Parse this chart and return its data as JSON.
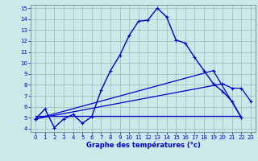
{
  "xlabel": "Graphe des températures (°c)",
  "xlim": [
    -0.5,
    23.5
  ],
  "ylim": [
    3.7,
    15.3
  ],
  "yticks": [
    4,
    5,
    6,
    7,
    8,
    9,
    10,
    11,
    12,
    13,
    14,
    15
  ],
  "xticks": [
    0,
    1,
    2,
    3,
    4,
    5,
    6,
    7,
    8,
    9,
    10,
    11,
    12,
    13,
    14,
    15,
    16,
    17,
    18,
    19,
    20,
    21,
    22,
    23
  ],
  "bg_color": "#cce8e8",
  "line_color": "#0000cc",
  "grid_color": "#99bbbb",
  "lines": [
    {
      "x": [
        0,
        1,
        2,
        3,
        4,
        5,
        6,
        7,
        8,
        9,
        10,
        11,
        12,
        13,
        14,
        15,
        16,
        17,
        18,
        19,
        20,
        21,
        22,
        23
      ],
      "y": [
        4.9,
        5.8,
        4.1,
        4.9,
        5.3,
        4.5,
        5.1,
        7.5,
        9.3,
        10.7,
        12.5,
        13.8,
        13.9,
        15.0,
        14.2,
        12.1,
        11.8,
        10.5,
        9.3,
        8.1,
        7.4,
        6.5,
        5.0,
        null
      ],
      "has_markers": true,
      "markersize": 2.5,
      "linewidth": 1.0
    },
    {
      "x": [
        0,
        22
      ],
      "y": [
        5.2,
        5.2
      ],
      "has_markers": false,
      "linewidth": 0.9
    },
    {
      "comment": "diagonal line from (0,4.9) up to (20,8.1) then to (21,7.7) then (22,7.7) then (23,6.5)",
      "x": [
        0,
        20,
        21,
        22,
        23
      ],
      "y": [
        4.9,
        8.1,
        7.7,
        7.7,
        6.5
      ],
      "has_markers": true,
      "markersize": 2.5,
      "linewidth": 0.9
    },
    {
      "x": [
        0,
        19,
        22
      ],
      "y": [
        4.9,
        9.3,
        5.0
      ],
      "has_markers": true,
      "markersize": 2.5,
      "linewidth": 0.9
    }
  ]
}
